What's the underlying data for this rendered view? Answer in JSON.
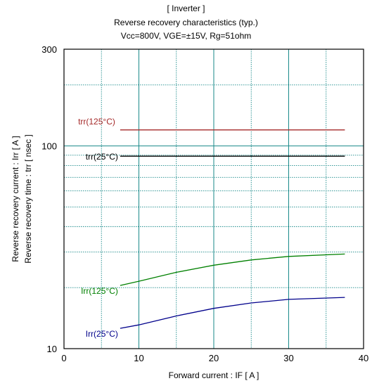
{
  "chart_data": {
    "type": "line",
    "title_lines": [
      "[ Inverter ]",
      "Reverse recovery characteristics  (typ.)",
      "Vcc=800V, VGE=±15V, Rg=51ohm"
    ],
    "xlabel": "Forward current  :  IF  [ A ]",
    "ylabel_lines": [
      "Reverse recovery current  :  Irr  [ A ]",
      "Reverse recovery time  :  trr  [ nsec ]"
    ],
    "xlim": [
      0,
      40
    ],
    "ylim": [
      10,
      300
    ],
    "y_scale": "log",
    "x_ticks": [
      "0",
      "10",
      "20",
      "30",
      "40"
    ],
    "y_ticks": [
      "10",
      "100",
      "300"
    ],
    "grid": true,
    "series": [
      {
        "name": "trr(125°C)",
        "color": "#a52a2a",
        "x": [
          7.5,
          10,
          15,
          20,
          25,
          30,
          37.5
        ],
        "y": [
          120,
          120,
          120,
          120,
          120,
          120,
          120
        ]
      },
      {
        "name": "trr(25°C)",
        "color": "#000000",
        "x": [
          7.5,
          10,
          15,
          20,
          25,
          30,
          37.5
        ],
        "y": [
          89,
          89,
          89,
          89,
          89,
          89,
          89
        ]
      },
      {
        "name": "Irr(125°C)",
        "color": "#008000",
        "x": [
          7.5,
          10,
          15,
          20,
          25,
          30,
          37.5
        ],
        "y": [
          20.5,
          21.5,
          23.8,
          25.8,
          27.4,
          28.5,
          29.3
        ]
      },
      {
        "name": "Irr(25°C)",
        "color": "#00008b",
        "x": [
          7.5,
          10,
          15,
          20,
          25,
          30,
          37.5
        ],
        "y": [
          12.6,
          13.1,
          14.5,
          15.8,
          16.8,
          17.5,
          17.9
        ]
      }
    ]
  }
}
